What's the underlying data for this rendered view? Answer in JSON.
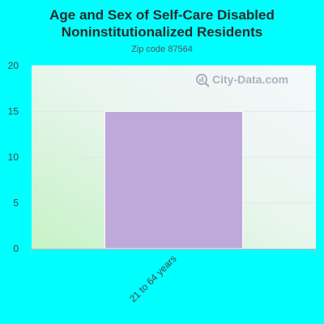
{
  "header": {
    "title_line1": "Age and Sex of Self-Care Disabled",
    "title_line2": "Noninstitutionalized Residents",
    "subtitle": "Zip code 87564"
  },
  "watermark": {
    "text": "City-Data.com",
    "icon": "magnifier-icon"
  },
  "colors": {
    "page_background": "#00ffff",
    "bar_fill": "#bfa8da",
    "plot_green": "#c8f0c8",
    "plot_white": "#f4f8fb"
  },
  "chart_data": {
    "type": "bar",
    "title": "Age and Sex of Self-Care Disabled Noninstitutionalized Residents",
    "subtitle": "Zip code 87564",
    "categories": [
      "21 to 64 years"
    ],
    "values": [
      15
    ],
    "ylim": [
      0,
      20
    ],
    "yticks": [
      "0",
      "5",
      "10",
      "15",
      "20"
    ],
    "xlabel": "",
    "ylabel": "",
    "grid": true,
    "legend": "none"
  }
}
